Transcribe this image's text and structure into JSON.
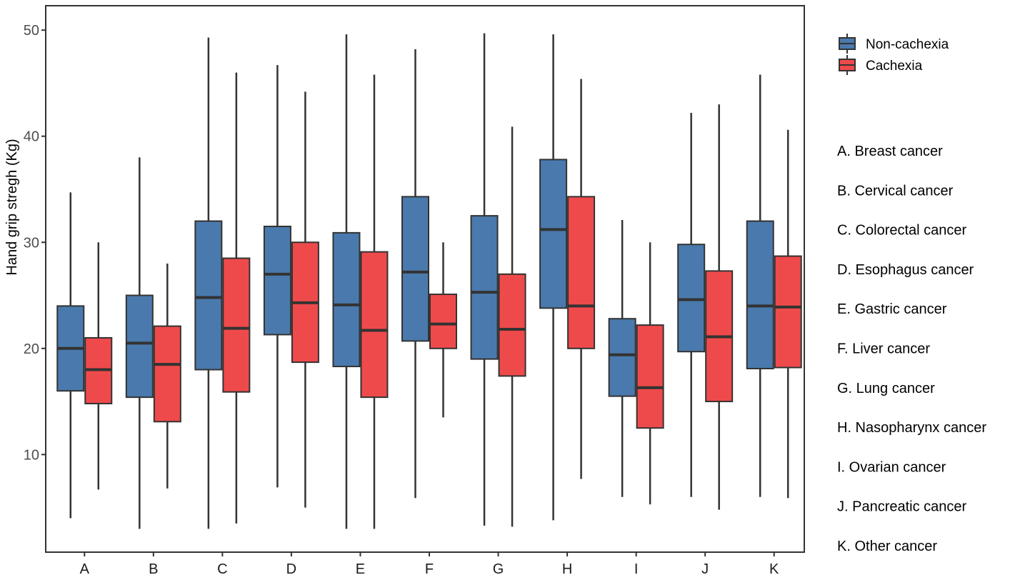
{
  "chart_data": {
    "type": "box",
    "xlabel": "",
    "ylabel": "Hand grip stregh (Kg)",
    "ylim": [
      0.8,
      52.3
    ],
    "yticks": [
      10,
      20,
      30,
      40,
      50
    ],
    "grid": false,
    "legend_position": "top-right",
    "categories": [
      "A",
      "B",
      "C",
      "D",
      "E",
      "F",
      "G",
      "H",
      "I",
      "J",
      "K"
    ],
    "category_notes": [
      "A. Breast cancer",
      "B. Cervical cancer",
      "C. Colorectal cancer",
      "D. Esophagus cancer",
      "E. Gastric cancer",
      "F. Liver cancer",
      "G. Lung cancer",
      "H. Nasopharynx cancer",
      "I. Ovarian cancer",
      "J. Pancreatic cancer",
      "K. Other cancer"
    ],
    "series": [
      {
        "name": "Non-cachexia",
        "color": "#4a7aad",
        "boxes": [
          {
            "min": 4.0,
            "q1": 16.0,
            "median": 20.0,
            "q3": 24.0,
            "max": 34.7
          },
          {
            "min": 3.0,
            "q1": 15.4,
            "median": 20.5,
            "q3": 25.0,
            "max": 38.0
          },
          {
            "min": 3.0,
            "q1": 18.0,
            "median": 24.8,
            "q3": 32.0,
            "max": 49.3
          },
          {
            "min": 6.9,
            "q1": 21.3,
            "median": 27.0,
            "q3": 31.5,
            "max": 46.7
          },
          {
            "min": 3.0,
            "q1": 18.3,
            "median": 24.1,
            "q3": 30.9,
            "max": 49.6
          },
          {
            "min": 5.9,
            "q1": 20.7,
            "median": 27.2,
            "q3": 34.3,
            "max": 48.2
          },
          {
            "min": 3.3,
            "q1": 19.0,
            "median": 25.3,
            "q3": 32.5,
            "max": 49.7
          },
          {
            "min": 3.8,
            "q1": 23.8,
            "median": 31.2,
            "q3": 37.8,
            "max": 49.6
          },
          {
            "min": 6.0,
            "q1": 15.5,
            "median": 19.4,
            "q3": 22.8,
            "max": 32.1
          },
          {
            "min": 6.0,
            "q1": 19.7,
            "median": 24.6,
            "q3": 29.8,
            "max": 42.2
          },
          {
            "min": 6.0,
            "q1": 18.1,
            "median": 24.0,
            "q3": 32.0,
            "max": 45.8
          }
        ]
      },
      {
        "name": "Cachexia",
        "color": "#ef4a4b",
        "boxes": [
          {
            "min": 6.7,
            "q1": 14.8,
            "median": 18.0,
            "q3": 21.0,
            "max": 30.0
          },
          {
            "min": 6.8,
            "q1": 13.1,
            "median": 18.5,
            "q3": 22.1,
            "max": 28.0
          },
          {
            "min": 3.5,
            "q1": 15.9,
            "median": 21.9,
            "q3": 28.5,
            "max": 46.0
          },
          {
            "min": 5.0,
            "q1": 18.7,
            "median": 24.3,
            "q3": 30.0,
            "max": 44.2
          },
          {
            "min": 3.0,
            "q1": 15.4,
            "median": 21.7,
            "q3": 29.1,
            "max": 45.8
          },
          {
            "min": 13.5,
            "q1": 20.0,
            "median": 22.3,
            "q3": 25.1,
            "max": 30.0
          },
          {
            "min": 3.2,
            "q1": 17.4,
            "median": 21.8,
            "q3": 27.0,
            "max": 40.9
          },
          {
            "min": 7.7,
            "q1": 20.0,
            "median": 24.0,
            "q3": 34.3,
            "max": 45.4
          },
          {
            "min": 5.3,
            "q1": 12.5,
            "median": 16.3,
            "q3": 22.2,
            "max": 30.0
          },
          {
            "min": 4.8,
            "q1": 15.0,
            "median": 21.1,
            "q3": 27.3,
            "max": 43.0
          },
          {
            "min": 5.9,
            "q1": 18.2,
            "median": 23.9,
            "q3": 28.7,
            "max": 40.6
          }
        ]
      }
    ]
  }
}
